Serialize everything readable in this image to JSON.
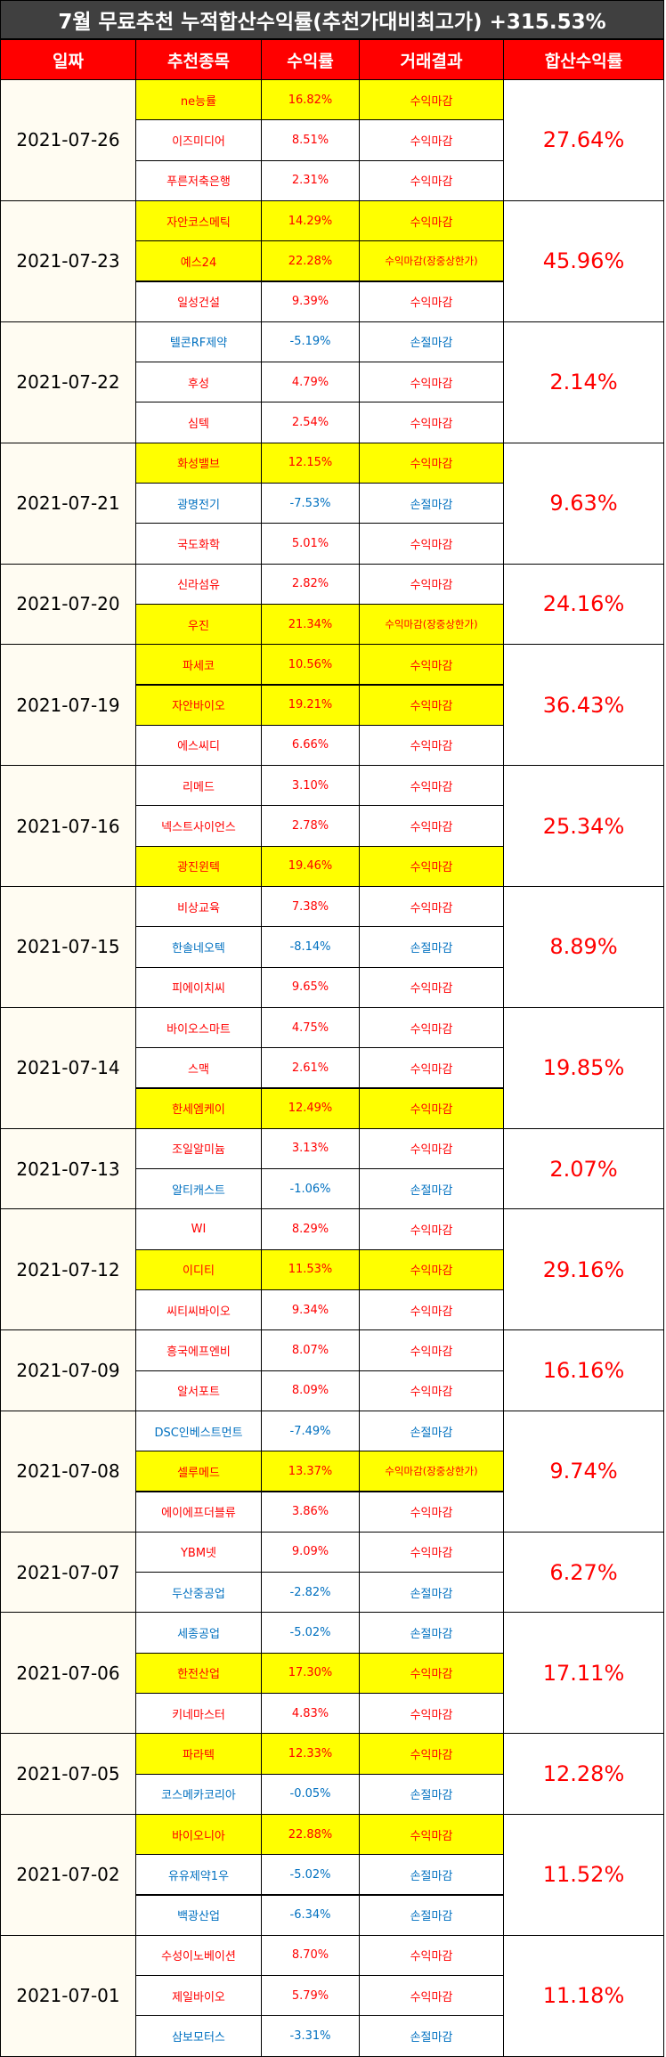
{
  "title": "7월 무료추천 누적합산수익률(추천가대비최고가) +315.53%",
  "headers": [
    "일짜",
    "추천종목",
    "수익률",
    "거래결과",
    "합산수익률"
  ],
  "colors": {
    "title_bg": "#404040",
    "header_bg": "#ff0000",
    "highlight": "#ffff00",
    "positive": "#ff0000",
    "negative": "#0070c0",
    "date_bg": "#fffcf2"
  },
  "groups": [
    {
      "date": "2021-07-26",
      "total": "27.64%",
      "rows": [
        {
          "stock": "ne능률",
          "rate": "16.82%",
          "result": "수익마감",
          "hl": true,
          "neg": false
        },
        {
          "stock": "이즈미디어",
          "rate": "8.51%",
          "result": "수익마감",
          "hl": false,
          "neg": false
        },
        {
          "stock": "푸른저축은행",
          "rate": "2.31%",
          "result": "수익마감",
          "hl": false,
          "neg": false
        }
      ]
    },
    {
      "date": "2021-07-23",
      "total": "45.96%",
      "rows": [
        {
          "stock": "자안코스메틱",
          "rate": "14.29%",
          "result": "수익마감",
          "hl": true,
          "neg": false
        },
        {
          "stock": "예스24",
          "rate": "22.28%",
          "result": "수익마감(장중상한가)",
          "hl": true,
          "neg": false
        },
        {
          "stock": "일성건설",
          "rate": "9.39%",
          "result": "수익마감",
          "hl": false,
          "neg": false
        }
      ]
    },
    {
      "date": "2021-07-22",
      "total": "2.14%",
      "rows": [
        {
          "stock": "텔콘RF제약",
          "rate": "-5.19%",
          "result": "손절마감",
          "hl": false,
          "neg": true
        },
        {
          "stock": "후성",
          "rate": "4.79%",
          "result": "수익마감",
          "hl": false,
          "neg": false
        },
        {
          "stock": "심텍",
          "rate": "2.54%",
          "result": "수익마감",
          "hl": false,
          "neg": false
        }
      ]
    },
    {
      "date": "2021-07-21",
      "total": "9.63%",
      "rows": [
        {
          "stock": "화성밸브",
          "rate": "12.15%",
          "result": "수익마감",
          "hl": true,
          "neg": false
        },
        {
          "stock": "광명전기",
          "rate": "-7.53%",
          "result": "손절마감",
          "hl": false,
          "neg": true
        },
        {
          "stock": "국도화학",
          "rate": "5.01%",
          "result": "수익마감",
          "hl": false,
          "neg": false
        }
      ]
    },
    {
      "date": "2021-07-20",
      "total": "24.16%",
      "rows": [
        {
          "stock": "신라섬유",
          "rate": "2.82%",
          "result": "수익마감",
          "hl": false,
          "neg": false
        },
        {
          "stock": "우진",
          "rate": "21.34%",
          "result": "수익마감(장중상한가)",
          "hl": true,
          "neg": false
        }
      ]
    },
    {
      "date": "2021-07-19",
      "total": "36.43%",
      "rows": [
        {
          "stock": "파세코",
          "rate": "10.56%",
          "result": "수익마감",
          "hl": true,
          "neg": false
        },
        {
          "stock": "자안바이오",
          "rate": "19.21%",
          "result": "수익마감",
          "hl": true,
          "neg": false
        },
        {
          "stock": "에스씨디",
          "rate": "6.66%",
          "result": "수익마감",
          "hl": false,
          "neg": false
        }
      ]
    },
    {
      "date": "2021-07-16",
      "total": "25.34%",
      "rows": [
        {
          "stock": "리메드",
          "rate": "3.10%",
          "result": "수익마감",
          "hl": false,
          "neg": false
        },
        {
          "stock": "넥스트사이언스",
          "rate": "2.78%",
          "result": "수익마감",
          "hl": false,
          "neg": false
        },
        {
          "stock": "광진윈텍",
          "rate": "19.46%",
          "result": "수익마감",
          "hl": true,
          "neg": false
        }
      ]
    },
    {
      "date": "2021-07-15",
      "total": "8.89%",
      "rows": [
        {
          "stock": "비상교육",
          "rate": "7.38%",
          "result": "수익마감",
          "hl": false,
          "neg": false
        },
        {
          "stock": "한솔네오텍",
          "rate": "-8.14%",
          "result": "손절마감",
          "hl": false,
          "neg": true
        },
        {
          "stock": "피에이치씨",
          "rate": "9.65%",
          "result": "수익마감",
          "hl": false,
          "neg": false
        }
      ]
    },
    {
      "date": "2021-07-14",
      "total": "19.85%",
      "rows": [
        {
          "stock": "바이오스마트",
          "rate": "4.75%",
          "result": "수익마감",
          "hl": false,
          "neg": false
        },
        {
          "stock": "스맥",
          "rate": "2.61%",
          "result": "수익마감",
          "hl": false,
          "neg": false
        },
        {
          "stock": "한세엠케이",
          "rate": "12.49%",
          "result": "수익마감",
          "hl": true,
          "neg": false
        }
      ]
    },
    {
      "date": "2021-07-13",
      "total": "2.07%",
      "rows": [
        {
          "stock": "조일알미늄",
          "rate": "3.13%",
          "result": "수익마감",
          "hl": false,
          "neg": false
        },
        {
          "stock": "알티캐스트",
          "rate": "-1.06%",
          "result": "손절마감",
          "hl": false,
          "neg": true
        }
      ]
    },
    {
      "date": "2021-07-12",
      "total": "29.16%",
      "rows": [
        {
          "stock": "WI",
          "rate": "8.29%",
          "result": "수익마감",
          "hl": false,
          "neg": false
        },
        {
          "stock": "이디티",
          "rate": "11.53%",
          "result": "수익마감",
          "hl": true,
          "neg": false
        },
        {
          "stock": "씨티씨바이오",
          "rate": "9.34%",
          "result": "수익마감",
          "hl": false,
          "neg": false
        }
      ]
    },
    {
      "date": "2021-07-09",
      "total": "16.16%",
      "rows": [
        {
          "stock": "흥국에프엔비",
          "rate": "8.07%",
          "result": "수익마감",
          "hl": false,
          "neg": false
        },
        {
          "stock": "알서포트",
          "rate": "8.09%",
          "result": "수익마감",
          "hl": false,
          "neg": false
        }
      ]
    },
    {
      "date": "2021-07-08",
      "total": "9.74%",
      "rows": [
        {
          "stock": "DSC인베스트먼트",
          "rate": "-7.49%",
          "result": "손절마감",
          "hl": false,
          "neg": true
        },
        {
          "stock": "셀루메드",
          "rate": "13.37%",
          "result": "수익마감(장중상한가)",
          "hl": true,
          "neg": false
        },
        {
          "stock": "에이에프더블류",
          "rate": "3.86%",
          "result": "수익마감",
          "hl": false,
          "neg": false
        }
      ]
    },
    {
      "date": "2021-07-07",
      "total": "6.27%",
      "rows": [
        {
          "stock": "YBM넷",
          "rate": "9.09%",
          "result": "수익마감",
          "hl": false,
          "neg": false
        },
        {
          "stock": "두산중공업",
          "rate": "-2.82%",
          "result": "손절마감",
          "hl": false,
          "neg": true
        }
      ]
    },
    {
      "date": "2021-07-06",
      "total": "17.11%",
      "rows": [
        {
          "stock": "세종공업",
          "rate": "-5.02%",
          "result": "손절마감",
          "hl": false,
          "neg": true
        },
        {
          "stock": "한전산업",
          "rate": "17.30%",
          "result": "수익마감",
          "hl": true,
          "neg": false
        },
        {
          "stock": "키네마스터",
          "rate": "4.83%",
          "result": "수익마감",
          "hl": false,
          "neg": false
        }
      ]
    },
    {
      "date": "2021-07-05",
      "total": "12.28%",
      "rows": [
        {
          "stock": "파라텍",
          "rate": "12.33%",
          "result": "수익마감",
          "hl": true,
          "neg": false
        },
        {
          "stock": "코스메카코리아",
          "rate": "-0.05%",
          "result": "손절마감",
          "hl": false,
          "neg": true
        }
      ]
    },
    {
      "date": "2021-07-02",
      "total": "11.52%",
      "rows": [
        {
          "stock": "바이오니아",
          "rate": "22.88%",
          "result": "수익마감",
          "hl": true,
          "neg": false
        },
        {
          "stock": "유유제약1우",
          "rate": "-5.02%",
          "result": "손절마감",
          "hl": false,
          "neg": true
        },
        {
          "stock": "백광산업",
          "rate": "-6.34%",
          "result": "손절마감",
          "hl": false,
          "neg": true
        }
      ]
    },
    {
      "date": "2021-07-01",
      "total": "11.18%",
      "rows": [
        {
          "stock": "수성이노베이션",
          "rate": "8.70%",
          "result": "수익마감",
          "hl": false,
          "neg": false
        },
        {
          "stock": "제일바이오",
          "rate": "5.79%",
          "result": "수익마감",
          "hl": false,
          "neg": false
        },
        {
          "stock": "삼보모터스",
          "rate": "-3.31%",
          "result": "손절마감",
          "hl": false,
          "neg": true
        }
      ]
    }
  ]
}
